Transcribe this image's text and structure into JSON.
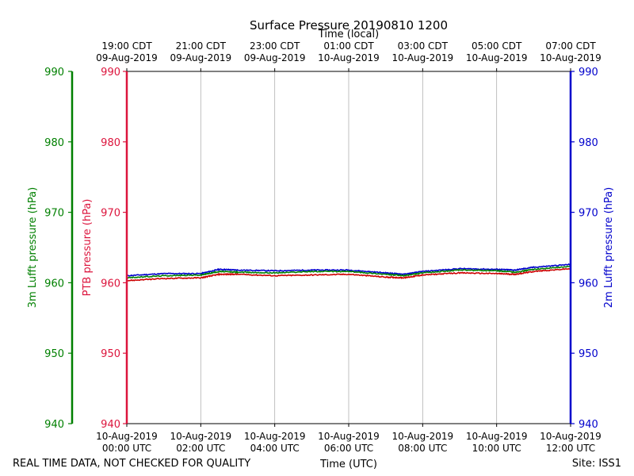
{
  "chart_data": {
    "type": "line",
    "title": "Surface Pressure 20190810 1200",
    "xlabel_top": "Time (local)",
    "xlabel_bottom": "Time (UTC)",
    "ylabel_green": "3m Lufft pressure (hPa)",
    "ylabel_red": "PTB pressure (hPa)",
    "ylabel_blue": "2m Lufft pressure (hPa)",
    "ylim": [
      940,
      990
    ],
    "yticks": [
      940,
      950,
      960,
      970,
      980,
      990
    ],
    "x_range_hours": [
      0,
      12
    ],
    "grid": "vertical",
    "bottom_ticks": [
      {
        "x": 0,
        "line1": "10-Aug-2019",
        "line2": "00:00 UTC"
      },
      {
        "x": 2,
        "line1": "10-Aug-2019",
        "line2": "02:00 UTC"
      },
      {
        "x": 4,
        "line1": "10-Aug-2019",
        "line2": "04:00 UTC"
      },
      {
        "x": 6,
        "line1": "10-Aug-2019",
        "line2": "06:00 UTC"
      },
      {
        "x": 8,
        "line1": "10-Aug-2019",
        "line2": "08:00 UTC"
      },
      {
        "x": 10,
        "line1": "10-Aug-2019",
        "line2": "10:00 UTC"
      },
      {
        "x": 12,
        "line1": "10-Aug-2019",
        "line2": "12:00 UTC"
      }
    ],
    "top_ticks": [
      {
        "x": 0,
        "line1": "19:00 CDT",
        "line2": "09-Aug-2019"
      },
      {
        "x": 2,
        "line1": "21:00 CDT",
        "line2": "09-Aug-2019"
      },
      {
        "x": 4,
        "line1": "23:00 CDT",
        "line2": "09-Aug-2019"
      },
      {
        "x": 6,
        "line1": "01:00 CDT",
        "line2": "10-Aug-2019"
      },
      {
        "x": 8,
        "line1": "03:00 CDT",
        "line2": "10-Aug-2019"
      },
      {
        "x": 10,
        "line1": "05:00 CDT",
        "line2": "10-Aug-2019"
      },
      {
        "x": 12,
        "line1": "07:00 CDT",
        "line2": "10-Aug-2019"
      }
    ],
    "series": [
      {
        "color": "#0000cc",
        "x": [
          0,
          1,
          2,
          2.5,
          3,
          4,
          5,
          6,
          7,
          7.5,
          8,
          9,
          10,
          10.5,
          11,
          12
        ],
        "values": [
          961.0,
          961.3,
          961.3,
          961.9,
          961.8,
          961.7,
          961.8,
          961.8,
          961.4,
          961.2,
          961.6,
          962.0,
          961.9,
          961.8,
          962.2,
          962.6
        ]
      },
      {
        "color": "#008000",
        "x": [
          0,
          1,
          2,
          2.5,
          3,
          4,
          5,
          6,
          7,
          7.5,
          8,
          9,
          10,
          10.5,
          11,
          12
        ],
        "values": [
          960.7,
          961.0,
          961.1,
          961.6,
          961.5,
          961.4,
          961.6,
          961.6,
          961.2,
          961.0,
          961.4,
          961.8,
          961.7,
          961.5,
          961.9,
          962.3
        ]
      },
      {
        "color": "#cc0000",
        "x": [
          0,
          1,
          2,
          2.5,
          3,
          4,
          5,
          6,
          7,
          7.5,
          8,
          9,
          10,
          10.5,
          11,
          12
        ],
        "values": [
          960.3,
          960.6,
          960.7,
          961.2,
          961.2,
          961.0,
          961.1,
          961.2,
          960.8,
          960.7,
          961.1,
          961.4,
          961.3,
          961.2,
          961.6,
          962.0
        ]
      }
    ]
  },
  "footer": {
    "left_note": "REAL TIME DATA, NOT CHECKED FOR QUALITY",
    "site": "Site: ISS1"
  },
  "colors": {
    "green_axis": "#008000",
    "red_axis": "#dc143c",
    "blue_axis": "#0000cc"
  }
}
